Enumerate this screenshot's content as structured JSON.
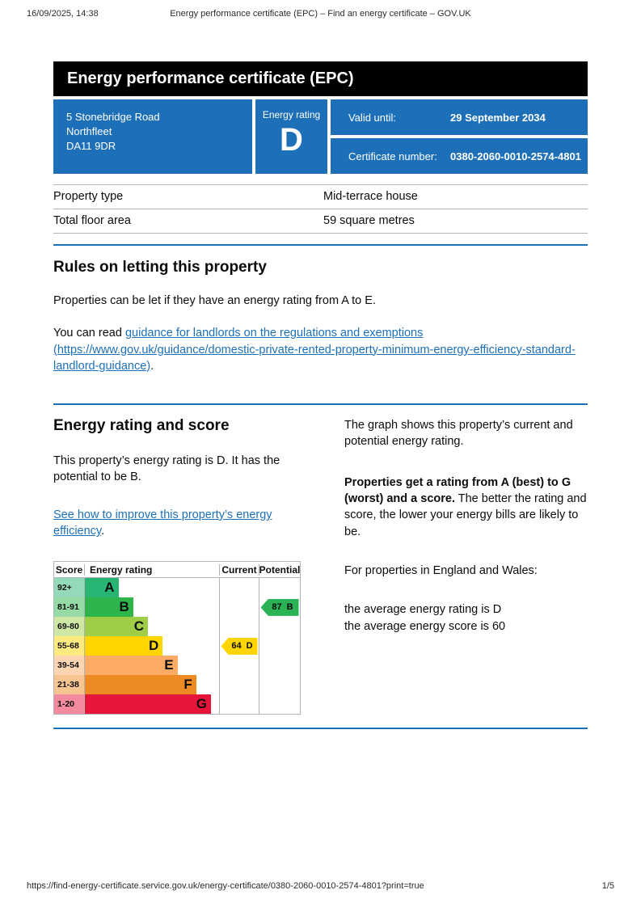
{
  "print_header": {
    "datetime": "16/09/2025, 14:38",
    "title": "Energy performance certificate (EPC) – Find an energy certificate – GOV.UK"
  },
  "banner": {
    "title": "Energy performance certificate (EPC)"
  },
  "colors": {
    "govuk_blue": "#1d70b8",
    "banner_black": "#000000",
    "border_gray": "#b1b4b6",
    "link_blue": "#1d70b8"
  },
  "summary": {
    "address": {
      "line1": "5 Stonebridge Road",
      "line2": "Northfleet",
      "line3": "DA11 9DR"
    },
    "energy_rating_label": "Energy rating",
    "energy_rating_value": "D",
    "valid_until_label": "Valid until:",
    "valid_until_value": "29 September 2034",
    "certificate_number_label": "Certificate number:",
    "certificate_number_value": "0380-2060-0010-2574-4801"
  },
  "property_details": {
    "rows": [
      {
        "label": "Property type",
        "value": "Mid-terrace house"
      },
      {
        "label": "Total floor area",
        "value": "59 square metres"
      }
    ]
  },
  "rules_section": {
    "heading": "Rules on letting this property",
    "body": "Properties can be let if they have an energy rating from A to E.",
    "read_prefix": "You can read ",
    "link_text": "guidance for landlords on the regulations and exemptions (https://www.gov.uk/guidance/domestic-private-rented-property-minimum-energy-efficiency-standard-landlord-guidance)",
    "read_suffix": "."
  },
  "rating_section": {
    "heading": "Energy rating and score",
    "intro": "This property’s energy rating is D. It has the potential to be B.",
    "improve_link_text": "See how to improve this property’s energy efficiency",
    "improve_link_suffix": ".",
    "graph_intro": "The graph shows this property’s current and potential energy rating.",
    "explain_bold": "Properties get a rating from A (best) to G (worst) and a score.",
    "explain_rest": " The better the rating and score, the lower your energy bills are likely to be.",
    "averages_intro": "For properties in England and Wales:",
    "average_rating_line": "the average energy rating is D",
    "average_score_line": "the average energy score is 60"
  },
  "chart_data": {
    "type": "bar",
    "title": "Energy rating and score",
    "columns": [
      "Score",
      "Energy rating",
      "Current",
      "Potential"
    ],
    "bands": [
      {
        "score": "92+",
        "letter": "A",
        "color": "#28b473",
        "tint": "#94dab9",
        "width": "25%"
      },
      {
        "score": "81-91",
        "letter": "B",
        "color": "#2db44b",
        "tint": "#96daa5",
        "width": "36%"
      },
      {
        "score": "69-80",
        "letter": "C",
        "color": "#9ece48",
        "tint": "#cfe7a4",
        "width": "47%"
      },
      {
        "score": "55-68",
        "letter": "D",
        "color": "#ffd500",
        "tint": "#ffea80",
        "width": "58%"
      },
      {
        "score": "39-54",
        "letter": "E",
        "color": "#fbab64",
        "tint": "#fdd5b2",
        "width": "69%"
      },
      {
        "score": "21-38",
        "letter": "F",
        "color": "#ee8a23",
        "tint": "#f7c591",
        "width": "83%"
      },
      {
        "score": "1-20",
        "letter": "G",
        "color": "#e8153b",
        "tint": "#f48a9d",
        "width": "94%"
      }
    ],
    "current": {
      "label": "64 D",
      "score": 64,
      "letter": "D",
      "band": "D",
      "color": "#ffd500"
    },
    "potential": {
      "label": "87 B",
      "score": 87,
      "letter": "B",
      "band": "B",
      "color": "#2ab355"
    }
  },
  "print_footer": {
    "url": "https://find-energy-certificate.service.gov.uk/energy-certificate/0380-2060-0010-2574-4801?print=true",
    "page": "1/5"
  }
}
